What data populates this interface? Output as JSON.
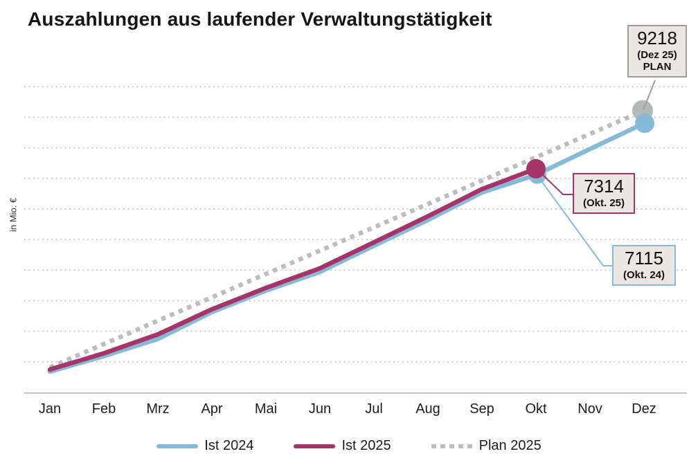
{
  "title": "Auszahlungen aus laufender Verwaltungstätigkeit",
  "y_axis_label": "in Mio. €",
  "colors": {
    "ist_2024": "#85BBD9",
    "ist_2025": "#A53569",
    "plan_2025": "#B9BFBF",
    "plan_marker": "#B3B8B8",
    "grid": "#CDCDCD",
    "axis": "#C6C6C6",
    "annotation_bg": "#EAE6E0",
    "annotation_border_plan": "#9C9C9C"
  },
  "chart_data": {
    "type": "line",
    "title": "Auszahlungen aus laufender Verwaltungstätigkeit",
    "xlabel": "",
    "ylabel": "in Mio. €",
    "categories": [
      "Jan",
      "Feb",
      "Mrz",
      "Apr",
      "Mai",
      "Jun",
      "Jul",
      "Aug",
      "Sep",
      "Okt",
      "Nov",
      "Dez"
    ],
    "ylim": [
      0,
      10500
    ],
    "grid": "horizontal-dotted-every-1000",
    "legend_position": "bottom",
    "series": [
      {
        "name": "Ist 2024",
        "color": "#85BBD9",
        "style": "solid",
        "markers": [
          "Okt",
          "Dez"
        ],
        "values": [
          680,
          1190,
          1750,
          2630,
          3330,
          3940,
          4800,
          5640,
          6540,
          7115,
          7960,
          8800
        ]
      },
      {
        "name": "Ist 2025",
        "color": "#A53569",
        "style": "solid",
        "markers": [
          "Okt"
        ],
        "values": [
          750,
          1280,
          1900,
          2720,
          3420,
          4060,
          4910,
          5760,
          6650,
          7314
        ]
      },
      {
        "name": "Plan 2025",
        "color": "#B9BFBF",
        "style": "dotted",
        "markers": [
          "Dez"
        ],
        "values": [
          820,
          1583,
          2347,
          3110,
          3874,
          4637,
          5401,
          6164,
          6928,
          7691,
          8455,
          9218
        ]
      }
    ],
    "annotations": [
      {
        "value": "9218",
        "note": "(Dez 25)",
        "tag": "PLAN",
        "series": "Plan 2025",
        "month": "Dez"
      },
      {
        "value": "7314",
        "note": "(Okt. 25)",
        "tag": "",
        "series": "Ist 2025",
        "month": "Okt"
      },
      {
        "value": "7115",
        "note": "(Okt. 24)",
        "tag": "",
        "series": "Ist 2024",
        "month": "Okt"
      }
    ]
  }
}
